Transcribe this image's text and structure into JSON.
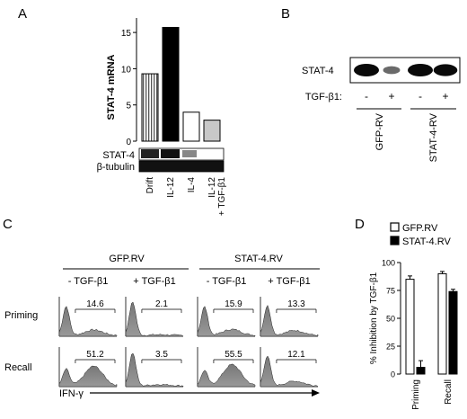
{
  "panels": {
    "A": {
      "letter": "A",
      "chart_data": {
        "type": "bar",
        "ylabel": "STAT-4 mRNA",
        "ylim": [
          0,
          17
        ],
        "yticks": [
          0,
          5,
          10,
          15
        ],
        "categories": [
          "Drift",
          "IL-12",
          "IL-4",
          "IL-12\n+ TGF-β1"
        ],
        "values": [
          9.3,
          15.7,
          4.0,
          2.9
        ],
        "fills": [
          "hatched",
          "black",
          "white",
          "gray"
        ]
      },
      "blot_labels": [
        "STAT-4",
        "β-tubulin"
      ]
    },
    "B": {
      "letter": "B",
      "protein_label": "STAT-4",
      "treatment_label": "TGF-β1:",
      "signs": [
        "-",
        "+",
        "-",
        "+"
      ],
      "groups": [
        "GFP-RV",
        "STAT-4-RV"
      ],
      "band_intensity": [
        1.0,
        0.35,
        1.0,
        0.9
      ]
    },
    "C": {
      "letter": "C",
      "groups": [
        "GFP.RV",
        "STAT-4.RV"
      ],
      "columns": [
        "- TGF-β1",
        "+ TGF-β1",
        "- TGF-β1",
        "+ TGF-β1"
      ],
      "rows": [
        "Priming",
        "Recall"
      ],
      "percentages": [
        [
          "14.6",
          "2.1",
          "15.9",
          "13.3"
        ],
        [
          "51.2",
          "3.5",
          "55.5",
          "12.1"
        ]
      ],
      "xlabel": "IFN-γ"
    },
    "D": {
      "letter": "D",
      "chart_data": {
        "type": "bar",
        "ylabel": "% Inhibition by TGF-β1",
        "ylim": [
          0,
          100
        ],
        "yticks": [
          0,
          25,
          50,
          75,
          100
        ],
        "categories": [
          "Priming",
          "Recall"
        ],
        "series": [
          {
            "name": "GFP.RV",
            "values": [
              85,
              90
            ],
            "errors": [
              3,
              2
            ],
            "fill": "#ffffff"
          },
          {
            "name": "STAT-4.RV",
            "values": [
              6,
              74
            ],
            "errors": [
              6,
              2
            ],
            "fill": "#000000"
          }
        ],
        "legend": "top"
      }
    }
  }
}
